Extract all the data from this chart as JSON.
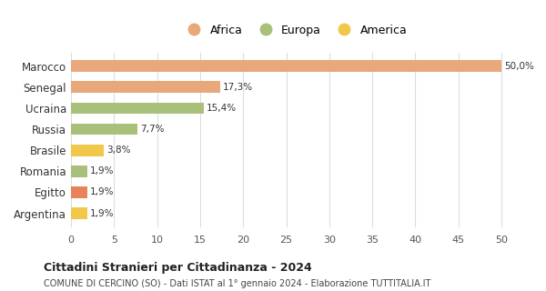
{
  "categories": [
    "Argentina",
    "Egitto",
    "Romania",
    "Brasile",
    "Russia",
    "Ucraina",
    "Senegal",
    "Marocco"
  ],
  "values": [
    1.9,
    1.9,
    1.9,
    3.8,
    7.7,
    15.4,
    17.3,
    50.0
  ],
  "labels": [
    "1,9%",
    "1,9%",
    "1,9%",
    "3,8%",
    "7,7%",
    "15,4%",
    "17,3%",
    "50,0%"
  ],
  "bar_colors": [
    "#f0c84a",
    "#e8825a",
    "#a8c07a",
    "#f0c84a",
    "#a8c07a",
    "#a8c07a",
    "#e8a87a",
    "#e8a87a"
  ],
  "legend_items": [
    {
      "label": "Africa",
      "color": "#e8a87a"
    },
    {
      "label": "Europa",
      "color": "#a8c07a"
    },
    {
      "label": "America",
      "color": "#f0c84a"
    }
  ],
  "xlim": [
    0,
    52
  ],
  "xticks": [
    0,
    5,
    10,
    15,
    20,
    25,
    30,
    35,
    40,
    45,
    50
  ],
  "title": "Cittadini Stranieri per Cittadinanza - 2024",
  "subtitle": "COMUNE DI CERCINO (SO) - Dati ISTAT al 1° gennaio 2024 - Elaborazione TUTTITALIA.IT",
  "background_color": "#ffffff",
  "grid_color": "#dddddd",
  "bar_height": 0.55
}
